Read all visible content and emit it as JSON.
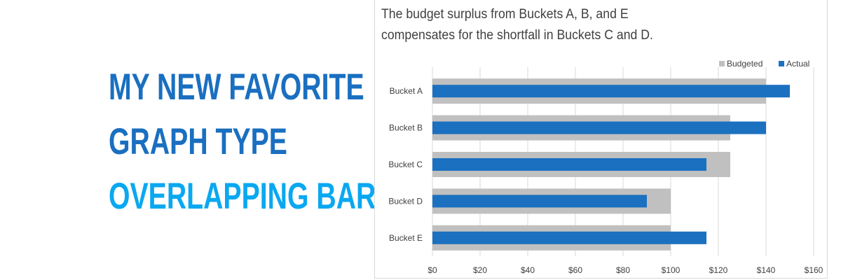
{
  "headline": {
    "line1": "MY NEW FAVORITE",
    "line2": "GRAPH TYPE",
    "line3": "OVERLAPPING BARS"
  },
  "colors": {
    "headline_dark": "#1a6fc0",
    "headline_light": "#0aa8f0",
    "budgeted": "#c0c0c0",
    "actual": "#1c70c0",
    "gridline": "#d9d9d9",
    "text": "#404040"
  },
  "chart_data": {
    "type": "bar",
    "orientation": "horizontal",
    "overlap": true,
    "title_lines": [
      "The budget surplus from Buckets A, B, and E",
      "compensates for the shortfall in Buckets C and D."
    ],
    "categories": [
      "Bucket A",
      "Bucket B",
      "Bucket C",
      "Bucket D",
      "Bucket E"
    ],
    "series": [
      {
        "name": "Budgeted",
        "values": [
          140,
          125,
          125,
          100,
          100
        ]
      },
      {
        "name": "Actual",
        "values": [
          150,
          140,
          115,
          90,
          115
        ]
      }
    ],
    "xlim": [
      0,
      160
    ],
    "xticks": [
      0,
      20,
      40,
      60,
      80,
      100,
      120,
      140,
      160
    ],
    "xtick_labels": [
      "$0",
      "$20",
      "$40",
      "$60",
      "$80",
      "$100",
      "$120",
      "$140",
      "$160"
    ],
    "grid": "vertical",
    "legend": "top-right"
  }
}
